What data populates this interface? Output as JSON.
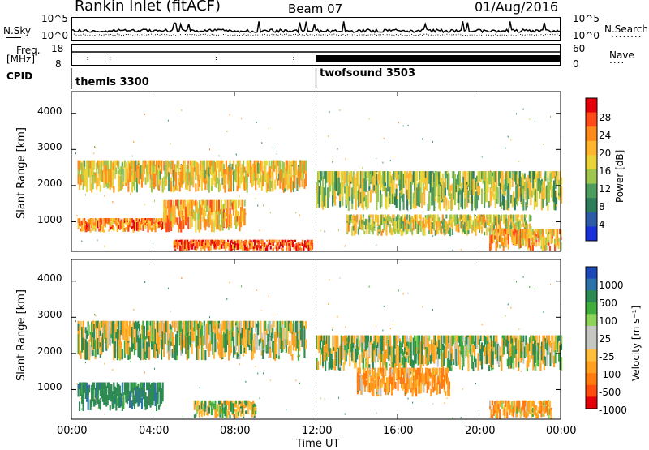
{
  "header": {
    "station": "Rankin Inlet (fitACF)",
    "beam": "Beam 07",
    "date": "01/Aug/2016"
  },
  "panels": {
    "nsky": {
      "left_label": "N.Sky",
      "left_ticks": [
        "10^5",
        "10^0"
      ],
      "right_ticks": [
        "10^5",
        "10^0"
      ],
      "right_label": "N.Search",
      "right_label_dots": "........"
    },
    "freq": {
      "left_label_1": "Freq.",
      "left_label_2": "[MHz]",
      "left_ticks": [
        "18",
        "8"
      ],
      "right_ticks": [
        "60",
        "0"
      ],
      "right_label": "Nave",
      "right_label_dots": "...."
    },
    "cpid": {
      "label": "CPID",
      "modes": [
        {
          "name": "themis 3300"
        },
        {
          "name": "twofsound 3503"
        }
      ]
    }
  },
  "axes": {
    "y_label": "Slant Range [km]",
    "y_ticks": [
      "4000",
      "3000",
      "2000",
      "1000"
    ],
    "x_label": "Time UT",
    "x_ticks": [
      "00:00",
      "04:00",
      "08:00",
      "12:00",
      "16:00",
      "20:00",
      "00:00"
    ]
  },
  "colorbars": {
    "power": {
      "label": "Power [dB]",
      "ticks": [
        "28",
        "24",
        "20",
        "16",
        "12",
        "8",
        "4"
      ],
      "colors": [
        "#e4000b",
        "#ff4a1a",
        "#ff8a1c",
        "#ffb52e",
        "#e9d43a",
        "#9fc64f",
        "#4e9c5f",
        "#2e7c5a",
        "#2f5aa6",
        "#1a2edc"
      ]
    },
    "velocity": {
      "label": "Velocity [m s⁻¹]",
      "ticks": [
        "1000",
        "500",
        "100",
        "25",
        "-25",
        "-100",
        "-500",
        "-1000"
      ],
      "colors": [
        "#1d49b7",
        "#2c71a8",
        "#2c8a52",
        "#3fae3c",
        "#8fd45a",
        "#c6c6c2",
        "#c6c6c2",
        "#ffbe3c",
        "#ffa020",
        "#ff7b10",
        "#ff4d10",
        "#e6000a"
      ]
    }
  },
  "chart_data": {
    "type": "heatmap",
    "title": "Rankin Inlet (fitACF) Beam 07 01/Aug/2016",
    "xlabel": "Time UT",
    "ylabel": "Slant Range [km]",
    "xlim": [
      "00:00",
      "24:00"
    ],
    "ylim": [
      180,
      4600
    ],
    "x_ticks": [
      "00:00",
      "04:00",
      "08:00",
      "12:00",
      "16:00",
      "20:00",
      "00:00"
    ],
    "y_ticks": [
      1000,
      2000,
      3000,
      4000
    ],
    "mode_change_time": "12:00",
    "programs": [
      {
        "name": "themis 3300",
        "start": "00:00",
        "end": "12:00"
      },
      {
        "name": "twofsound 3503",
        "start": "12:00",
        "end": "24:00"
      }
    ],
    "power_panel": {
      "colorbar": "Power [dB]",
      "range_db": [
        0,
        30
      ],
      "echo_regions": [
        {
          "t_start": 0.3,
          "t_end": 11.5,
          "r_low": 1800,
          "r_high": 2700,
          "power_db": 18
        },
        {
          "t_start": 0.3,
          "t_end": 4.5,
          "r_low": 700,
          "r_high": 1100,
          "power_db": 22
        },
        {
          "t_start": 4.5,
          "t_end": 8.5,
          "r_low": 700,
          "r_high": 1600,
          "power_db": 20
        },
        {
          "t_start": 5.0,
          "t_end": 11.8,
          "r_low": 180,
          "r_high": 500,
          "power_db": 26
        },
        {
          "t_start": 12.0,
          "t_end": 24.0,
          "r_low": 1300,
          "r_high": 2400,
          "power_db": 14
        },
        {
          "t_start": 13.5,
          "t_end": 22.5,
          "r_low": 600,
          "r_high": 1200,
          "power_db": 16
        },
        {
          "t_start": 20.5,
          "t_end": 24.0,
          "r_low": 180,
          "r_high": 800,
          "power_db": 20
        }
      ]
    },
    "velocity_panel": {
      "colorbar": "Velocity [m s⁻¹]",
      "range_ms": [
        -1000,
        1000
      ],
      "echo_regions": [
        {
          "t_start": 0.3,
          "t_end": 11.5,
          "r_low": 1800,
          "r_high": 2900,
          "velocity_ms": 0
        },
        {
          "t_start": 0.3,
          "t_end": 4.5,
          "r_low": 400,
          "r_high": 1200,
          "velocity_ms": 200
        },
        {
          "t_start": 6.0,
          "t_end": 9.0,
          "r_low": 200,
          "r_high": 700,
          "velocity_ms": 0
        },
        {
          "t_start": 12.0,
          "t_end": 24.0,
          "r_low": 1500,
          "r_high": 2500,
          "velocity_ms": 0
        },
        {
          "t_start": 14.0,
          "t_end": 18.5,
          "r_low": 800,
          "r_high": 1600,
          "velocity_ms": -150
        },
        {
          "t_start": 20.5,
          "t_end": 23.5,
          "r_low": 180,
          "r_high": 700,
          "velocity_ms": -120
        }
      ]
    }
  }
}
